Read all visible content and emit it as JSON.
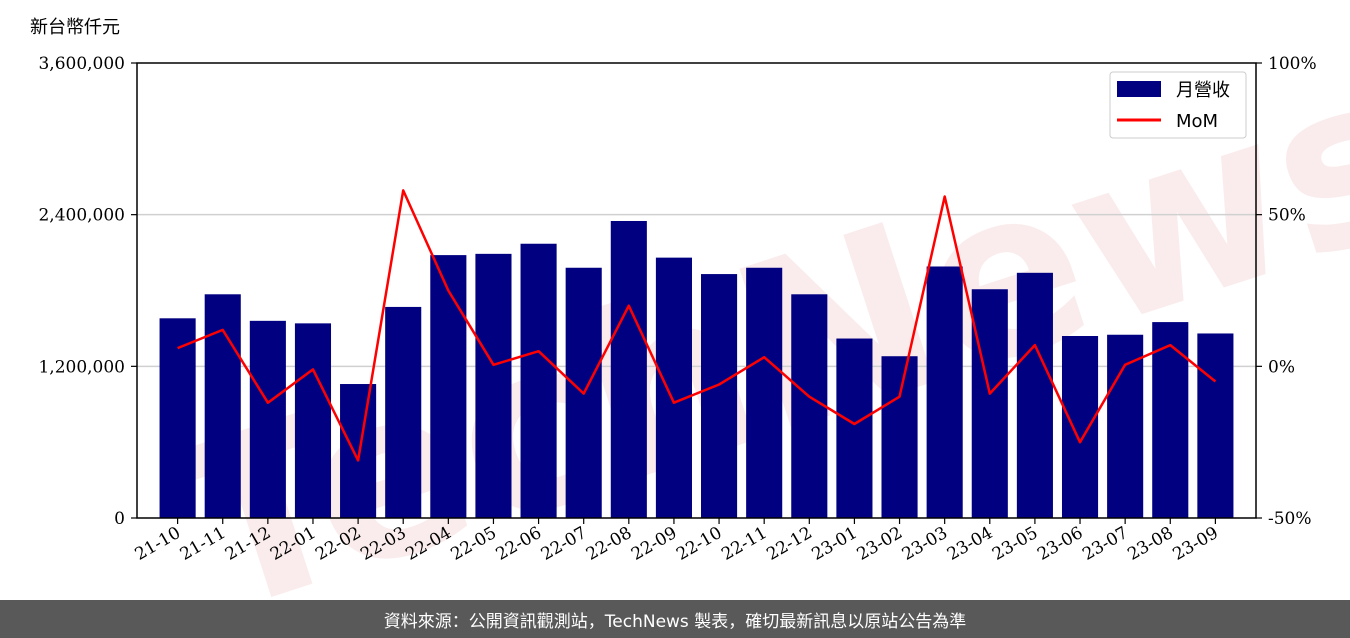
{
  "chart_data": {
    "type": "bar+line",
    "unit_label": "新台幣仟元",
    "categories": [
      "21-10",
      "21-11",
      "21-12",
      "22-01",
      "22-02",
      "22-03",
      "22-04",
      "22-05",
      "22-06",
      "22-07",
      "22-08",
      "22-09",
      "22-10",
      "22-11",
      "22-12",
      "23-01",
      "23-02",
      "23-03",
      "23-04",
      "23-05",
      "23-06",
      "23-07",
      "23-08",
      "23-09"
    ],
    "series": [
      {
        "name": "月營收",
        "type": "bar",
        "axis": "left",
        "color": "#000080",
        "values": [
          1580000,
          1770000,
          1560000,
          1540000,
          1060000,
          1670000,
          2080000,
          2090000,
          2170000,
          1980000,
          2350000,
          2060000,
          1930000,
          1980000,
          1770000,
          1420000,
          1280000,
          1990000,
          1810000,
          1940000,
          1440000,
          1450000,
          1550000,
          1460000
        ]
      },
      {
        "name": "MoM",
        "type": "line",
        "axis": "right",
        "color": "#ff0000",
        "values": [
          6,
          12,
          -12,
          -1,
          -31,
          58,
          25,
          0.5,
          5,
          -9,
          20,
          -12,
          -6,
          3,
          -10,
          -19,
          -10,
          56,
          -9,
          7,
          -25,
          0.5,
          7,
          -5
        ]
      }
    ],
    "y_left": {
      "min": 0,
      "max": 3600000,
      "ticks": [
        "0",
        "1,200,000",
        "2,400,000",
        "3,600,000"
      ],
      "tick_values": [
        0,
        1200000,
        2400000,
        3600000
      ]
    },
    "y_right": {
      "min": -50,
      "max": 100,
      "ticks": [
        "-50%",
        "0%",
        "50%",
        "100%"
      ],
      "tick_values": [
        -50,
        0,
        50,
        100
      ]
    },
    "grid": true,
    "legend_position": "top-right"
  },
  "watermark": "TechNews",
  "footer": {
    "text": "資料來源：公開資訊觀測站，TechNews 製表，確切最新訊息以原站公告為準"
  }
}
